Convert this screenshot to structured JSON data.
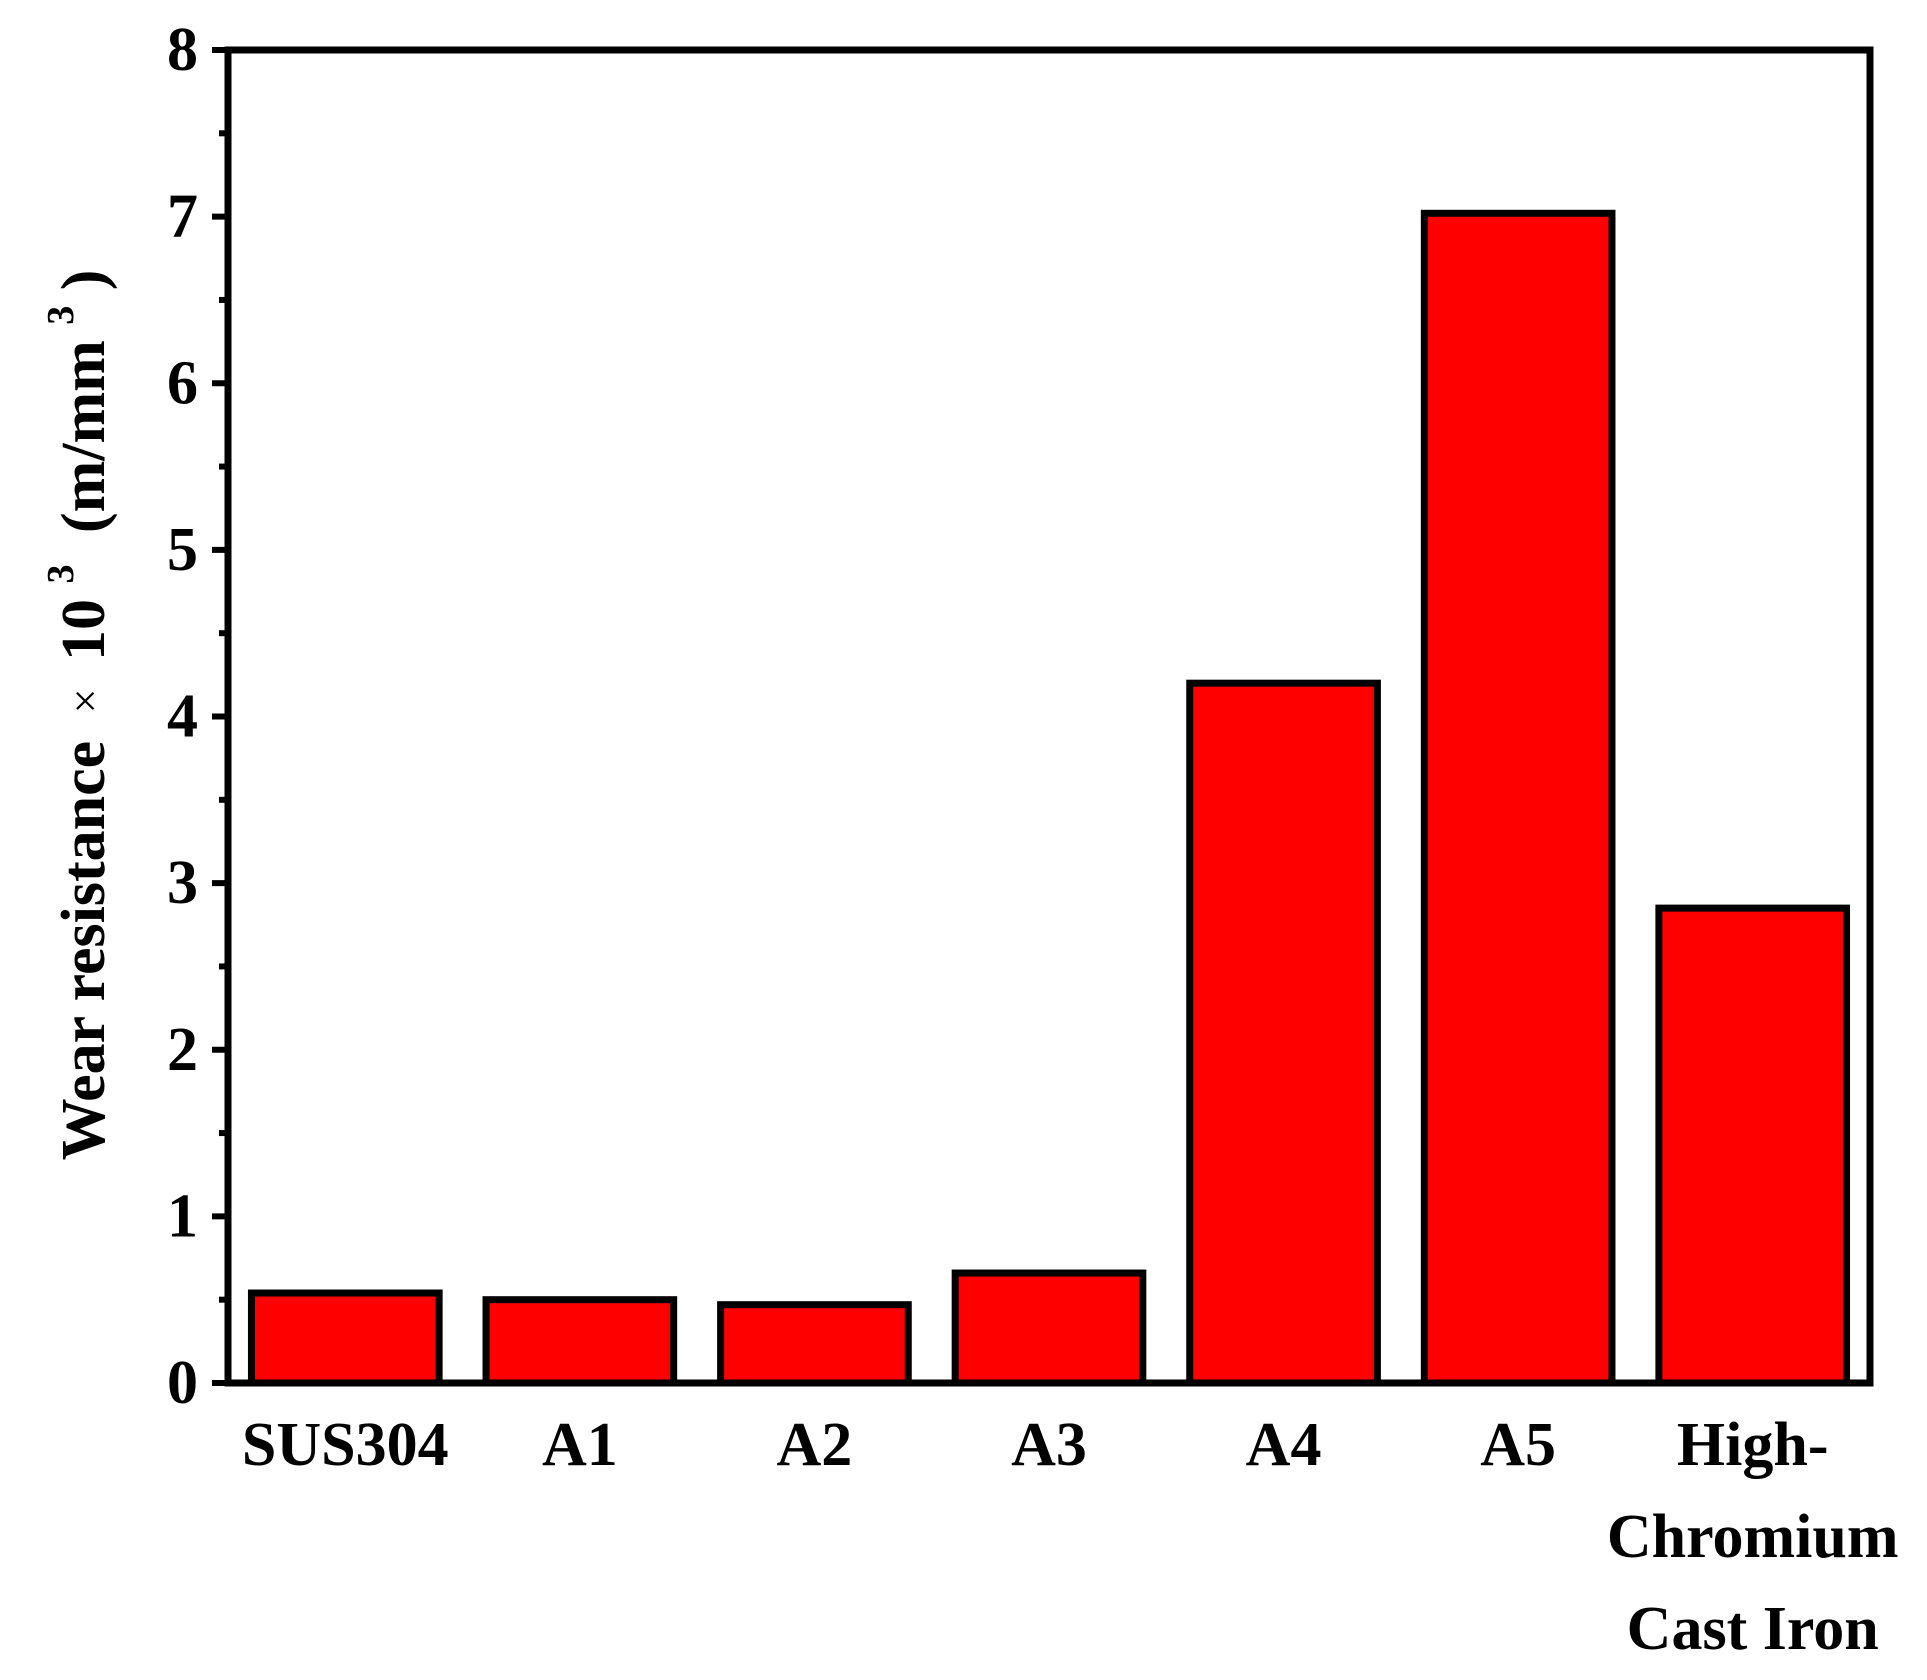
{
  "chart_data": {
    "type": "bar",
    "categories": [
      "SUS304",
      "A1",
      "A2",
      "A3",
      "A4",
      "A5",
      "High-\nChromium\nCast Iron"
    ],
    "values": [
      0.54,
      0.5,
      0.47,
      0.66,
      4.2,
      7.02,
      2.85
    ],
    "ylabel": {
      "main": "Wear resistance",
      "times": "×",
      "base": "10",
      "exp": "3",
      "unit_open": "(m/mm",
      "unit_exp": "3",
      "unit_close": ")"
    },
    "xlabel": "",
    "ylim": [
      0,
      8
    ],
    "yticks": [
      "0",
      "1",
      "2",
      "3",
      "4",
      "5",
      "6",
      "7",
      "8"
    ],
    "grid": false,
    "bar_color": "#ff0000",
    "bar_edge_color": "#000000"
  }
}
